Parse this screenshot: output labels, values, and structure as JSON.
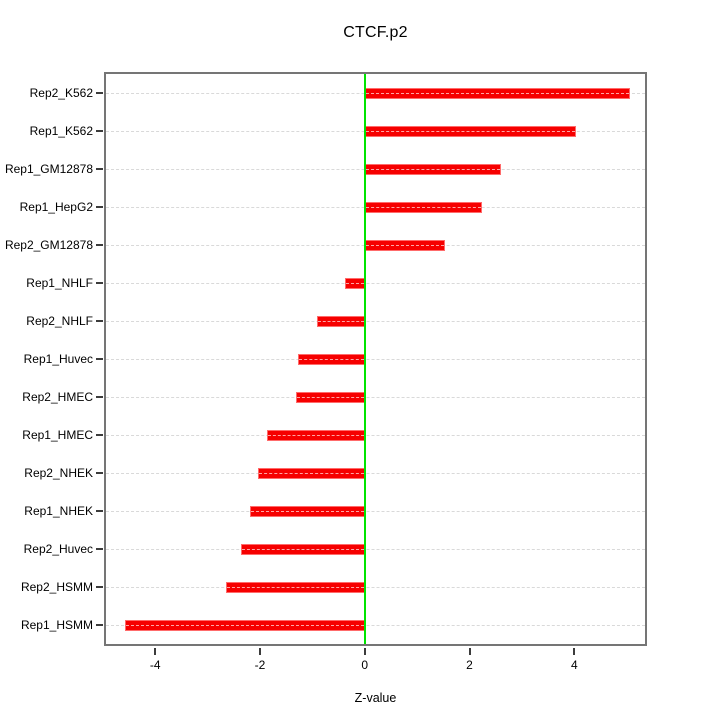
{
  "title": "CTCF.p2",
  "colors": {
    "bar": "#f60000",
    "bar_edge": "#ff6b6b",
    "zero_line": "#00e400",
    "grid_line": "#d9d9d9",
    "box_border": "#757575",
    "tick": "#3c3c3c",
    "text": "#000000",
    "background": "#ffffff"
  },
  "chart_data": {
    "type": "bar",
    "orientation": "horizontal",
    "title": "CTCF.p2",
    "xlabel": "Z-value",
    "ylabel": "",
    "categories": [
      "Rep2_K562",
      "Rep1_K562",
      "Rep1_GM12878",
      "Rep1_HepG2",
      "Rep2_GM12878",
      "Rep1_NHLF",
      "Rep2_NHLF",
      "Rep1_Huvec",
      "Rep2_HMEC",
      "Rep1_HMEC",
      "Rep2_NHEK",
      "Rep1_NHEK",
      "Rep2_Huvec",
      "Rep2_HSMM",
      "Rep1_HSMM"
    ],
    "values": [
      5.07,
      4.03,
      2.61,
      2.23,
      1.53,
      -0.37,
      -0.92,
      -1.27,
      -1.32,
      -1.87,
      -2.03,
      -2.2,
      -2.37,
      -2.65,
      -4.58
    ],
    "xticks": [
      -4,
      -2,
      0,
      2,
      4
    ],
    "xlim": [
      -4.94,
      5.35
    ],
    "grid": "horizontal dashed line per category row",
    "zero_reference_line": 0,
    "legend": "none"
  }
}
